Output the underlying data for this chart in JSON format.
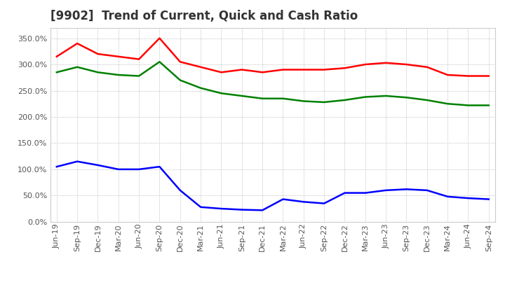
{
  "title": "[9902]  Trend of Current, Quick and Cash Ratio",
  "x_labels": [
    "Jun-19",
    "Sep-19",
    "Dec-19",
    "Mar-20",
    "Jun-20",
    "Sep-20",
    "Dec-20",
    "Mar-21",
    "Jun-21",
    "Sep-21",
    "Dec-21",
    "Mar-22",
    "Jun-22",
    "Sep-22",
    "Dec-22",
    "Mar-23",
    "Jun-23",
    "Sep-23",
    "Dec-23",
    "Mar-24",
    "Jun-24",
    "Sep-24"
  ],
  "current_ratio": [
    315,
    340,
    320,
    315,
    310,
    350,
    305,
    295,
    285,
    290,
    285,
    290,
    290,
    290,
    293,
    300,
    303,
    300,
    295,
    280,
    278,
    278
  ],
  "quick_ratio": [
    285,
    295,
    285,
    280,
    278,
    305,
    270,
    255,
    245,
    240,
    235,
    235,
    230,
    228,
    232,
    238,
    240,
    237,
    232,
    225,
    222,
    222
  ],
  "cash_ratio": [
    105,
    115,
    108,
    100,
    100,
    105,
    60,
    28,
    25,
    23,
    22,
    43,
    38,
    35,
    55,
    55,
    60,
    62,
    60,
    48,
    45,
    43
  ],
  "current_color": "#FF0000",
  "quick_color": "#008000",
  "cash_color": "#0000FF",
  "ylim": [
    0,
    370
  ],
  "yticks": [
    0,
    50,
    100,
    150,
    200,
    250,
    300,
    350
  ],
  "background_color": "#ffffff",
  "grid_color": "#aaaaaa",
  "title_fontsize": 12,
  "line_width": 1.8,
  "legend_fontsize": 9,
  "tick_fontsize": 8
}
